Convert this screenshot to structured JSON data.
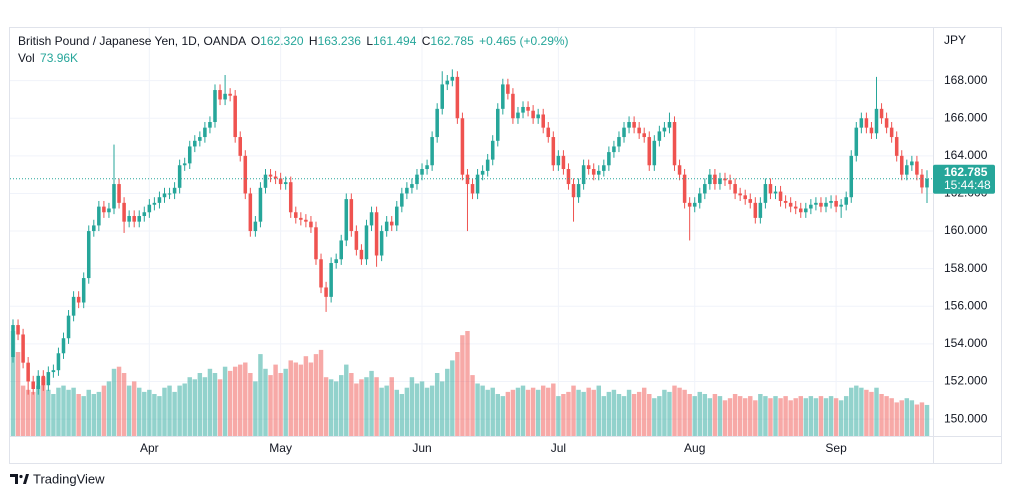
{
  "chart_data": {
    "type": "candlestick",
    "title": "British Pound / Japanese Yen, 1D, OANDA",
    "ohlc_letters": [
      "O",
      "H",
      "L",
      "C"
    ],
    "ohlc_labels": [
      "162.320",
      "163.236",
      "161.494",
      "162.785"
    ],
    "change_label": "+0.465 (+0.29%)",
    "volume_name": "Vol",
    "volume_value_label": "73.96K",
    "currency": "JPY",
    "last_price_label": "162.785",
    "countdown": "15:44:48",
    "brand": "TradingView",
    "up_color": "#26a69a",
    "down_color": "#ef5350",
    "grid": true,
    "ylim": [
      149.1,
      170.8
    ],
    "yticks": [
      {
        "value": 150,
        "label": "150.000"
      },
      {
        "value": 152,
        "label": "152.000"
      },
      {
        "value": 154,
        "label": "154.000"
      },
      {
        "value": 156,
        "label": "156.000"
      },
      {
        "value": 158,
        "label": "158.000"
      },
      {
        "value": 160,
        "label": "160.000"
      },
      {
        "value": 162,
        "label": "162.000"
      },
      {
        "value": 164,
        "label": "164.000"
      },
      {
        "value": 166,
        "label": "166.000"
      },
      {
        "value": 168,
        "label": "168.000"
      }
    ],
    "xticks": [
      {
        "value": 27,
        "label": "Apr"
      },
      {
        "value": 53,
        "label": "May"
      },
      {
        "value": 81,
        "label": "Jun"
      },
      {
        "value": 108,
        "label": "Jul"
      },
      {
        "value": 135,
        "label": "Aug"
      },
      {
        "value": 163,
        "label": "Sep"
      }
    ],
    "open": [
      153.3,
      155.0,
      154.5,
      153.0,
      152.0,
      151.6,
      152.3,
      151.8,
      152.5,
      152.6,
      153.5,
      154.3,
      155.5,
      156.5,
      156.2,
      157.5,
      160.0,
      160.3,
      161.3,
      161.0,
      161.2,
      162.5,
      161.5,
      160.5,
      160.8,
      160.5,
      160.8,
      161.0,
      161.4,
      161.5,
      161.8,
      162.0,
      162.0,
      162.3,
      163.5,
      163.6,
      164.5,
      164.8,
      165.0,
      165.5,
      165.8,
      167.5,
      167.0,
      167.3,
      167.2,
      165.0,
      164.0,
      162.0,
      160.0,
      160.5,
      162.3,
      163.0,
      162.9,
      162.8,
      162.5,
      162.6,
      161.0,
      160.7,
      160.6,
      160.5,
      160.2,
      158.5,
      157.0,
      156.5,
      158.3,
      158.5,
      159.5,
      161.7,
      160.0,
      159.0,
      158.5,
      160.3,
      161.0,
      158.7,
      160.0,
      160.5,
      160.3,
      161.3,
      162.0,
      162.3,
      162.5,
      163.0,
      163.3,
      163.5,
      165.0,
      166.5,
      167.8,
      168.0,
      168.2,
      166.0,
      163.0,
      162.5,
      162.0,
      163.0,
      163.2,
      163.8,
      164.8,
      166.5,
      167.8,
      167.3,
      166.0,
      166.3,
      166.6,
      166.4,
      166.0,
      166.2,
      165.5,
      165.0,
      163.5,
      164.0,
      163.3,
      162.5,
      161.8,
      162.5,
      163.5,
      163.3,
      163.0,
      163.2,
      163.5,
      164.2,
      164.5,
      165.0,
      165.5,
      165.8,
      165.5,
      165.2,
      165.0,
      163.5,
      164.8,
      165.3,
      165.5,
      165.8,
      163.5,
      163.0,
      161.5,
      161.3,
      161.5,
      162.0,
      162.5,
      163.0,
      162.5,
      162.8,
      162.7,
      162.5,
      162.0,
      161.9,
      161.7,
      161.5,
      160.7,
      161.5,
      162.5,
      162.0,
      162.1,
      161.6,
      161.5,
      161.3,
      161.2,
      161.0,
      161.2,
      161.4,
      161.5,
      161.3,
      161.5,
      161.6,
      161.3,
      161.4,
      161.8,
      164.0,
      165.5,
      166.0,
      165.5,
      165.2,
      166.5,
      166.0,
      165.5,
      165.0,
      164.0,
      163.0,
      163.5,
      163.7,
      163.0,
      162.32
    ],
    "high": [
      155.3,
      155.3,
      154.8,
      153.3,
      152.3,
      152.6,
      152.6,
      152.8,
      152.9,
      153.8,
      154.6,
      155.8,
      156.8,
      156.8,
      157.8,
      160.3,
      160.6,
      161.6,
      161.6,
      161.5,
      164.6,
      162.8,
      161.8,
      161.1,
      161.1,
      161.1,
      161.3,
      161.7,
      161.8,
      162.1,
      162.3,
      162.3,
      162.6,
      163.8,
      163.9,
      164.8,
      165.1,
      165.3,
      165.8,
      166.1,
      167.8,
      167.8,
      168.3,
      167.6,
      167.5,
      165.3,
      164.3,
      162.3,
      160.8,
      162.6,
      163.3,
      163.3,
      163.2,
      163.1,
      162.9,
      162.9,
      161.3,
      161.0,
      160.9,
      160.8,
      160.5,
      158.8,
      157.3,
      158.6,
      158.8,
      159.8,
      162.0,
      162.0,
      160.3,
      159.3,
      160.6,
      161.3,
      161.3,
      160.3,
      160.8,
      160.8,
      161.6,
      162.3,
      162.6,
      162.8,
      163.3,
      163.6,
      163.8,
      165.3,
      166.8,
      168.5,
      168.3,
      168.6,
      168.5,
      166.3,
      163.3,
      162.8,
      163.3,
      163.5,
      164.1,
      165.1,
      166.8,
      168.1,
      168.1,
      167.6,
      166.6,
      166.9,
      166.9,
      166.7,
      166.5,
      166.5,
      165.8,
      165.3,
      164.3,
      164.3,
      163.6,
      162.8,
      162.8,
      163.8,
      163.8,
      163.6,
      163.5,
      163.8,
      164.5,
      164.8,
      165.3,
      165.8,
      166.1,
      166.1,
      165.8,
      165.5,
      165.3,
      165.1,
      165.6,
      165.8,
      166.3,
      166.1,
      163.8,
      163.3,
      161.8,
      161.8,
      162.3,
      162.8,
      163.3,
      163.3,
      163.1,
      163.1,
      163.0,
      162.8,
      162.3,
      162.2,
      162.0,
      161.8,
      161.8,
      162.8,
      162.8,
      162.4,
      162.4,
      161.9,
      161.8,
      161.6,
      161.5,
      161.5,
      161.7,
      161.8,
      161.8,
      161.8,
      161.9,
      161.9,
      161.7,
      162.1,
      164.3,
      165.8,
      166.3,
      166.3,
      165.8,
      168.2,
      166.8,
      166.3,
      165.8,
      165.3,
      164.3,
      163.8,
      164.0,
      164.0,
      163.3,
      163.236
    ],
    "low": [
      153.0,
      154.2,
      152.7,
      151.3,
      151.3,
      151.3,
      151.5,
      151.5,
      152.2,
      152.3,
      153.2,
      154.0,
      155.2,
      155.9,
      155.9,
      157.2,
      159.7,
      160.0,
      160.7,
      160.7,
      160.9,
      161.2,
      159.9,
      160.2,
      160.2,
      160.2,
      160.5,
      160.7,
      161.1,
      161.2,
      161.5,
      161.7,
      161.7,
      162.0,
      163.2,
      163.3,
      164.2,
      164.5,
      164.7,
      165.2,
      165.5,
      166.7,
      166.7,
      166.9,
      164.7,
      163.7,
      161.7,
      159.7,
      159.7,
      160.2,
      162.0,
      162.6,
      162.5,
      162.2,
      162.2,
      160.7,
      160.4,
      160.3,
      160.2,
      159.9,
      158.2,
      156.7,
      155.7,
      156.2,
      158.0,
      158.2,
      159.2,
      159.7,
      158.7,
      158.2,
      158.2,
      160.0,
      158.1,
      158.4,
      159.7,
      160.0,
      160.0,
      161.0,
      161.7,
      162.0,
      162.2,
      162.7,
      163.0,
      163.2,
      164.7,
      166.2,
      167.5,
      167.7,
      165.7,
      162.7,
      160.0,
      161.7,
      161.7,
      162.7,
      162.9,
      163.5,
      164.5,
      166.2,
      167.0,
      165.7,
      165.7,
      166.0,
      166.1,
      165.7,
      165.7,
      165.2,
      164.7,
      163.2,
      163.2,
      163.0,
      162.2,
      160.5,
      161.5,
      162.2,
      163.0,
      162.7,
      162.7,
      162.9,
      163.2,
      163.9,
      164.2,
      164.7,
      165.2,
      165.2,
      164.9,
      164.7,
      163.2,
      163.2,
      164.5,
      165.0,
      165.2,
      163.2,
      162.7,
      161.2,
      159.5,
      161.0,
      161.2,
      161.7,
      162.2,
      162.2,
      162.2,
      162.4,
      162.2,
      161.7,
      161.6,
      161.4,
      161.2,
      160.4,
      160.4,
      161.2,
      161.7,
      161.7,
      161.3,
      161.2,
      161.0,
      160.9,
      160.7,
      160.7,
      160.9,
      161.1,
      161.0,
      161.0,
      161.2,
      161.0,
      160.7,
      161.1,
      161.5,
      163.7,
      165.2,
      165.2,
      164.9,
      164.9,
      165.7,
      165.2,
      164.7,
      163.7,
      162.7,
      162.7,
      163.2,
      162.7,
      162.0,
      161.494
    ],
    "close": [
      155.0,
      154.5,
      153.0,
      152.0,
      151.6,
      152.3,
      151.8,
      152.5,
      152.6,
      153.5,
      154.3,
      155.5,
      156.5,
      156.2,
      157.5,
      160.0,
      160.3,
      161.3,
      161.0,
      161.2,
      162.5,
      161.5,
      160.5,
      160.8,
      160.5,
      160.8,
      161.0,
      161.4,
      161.5,
      161.8,
      162.0,
      162.0,
      162.3,
      163.5,
      163.6,
      164.5,
      164.8,
      165.0,
      165.5,
      165.8,
      167.5,
      167.0,
      167.3,
      167.2,
      165.0,
      164.0,
      162.0,
      160.0,
      160.5,
      162.3,
      163.0,
      162.9,
      162.8,
      162.5,
      162.6,
      161.0,
      160.7,
      160.6,
      160.5,
      160.2,
      158.5,
      157.0,
      156.5,
      158.3,
      158.5,
      159.5,
      161.7,
      160.0,
      159.0,
      158.5,
      160.3,
      161.0,
      158.7,
      160.0,
      160.5,
      160.3,
      161.3,
      162.0,
      162.3,
      162.5,
      163.0,
      163.3,
      163.5,
      165.0,
      166.5,
      167.8,
      168.0,
      168.2,
      166.0,
      163.0,
      162.5,
      162.0,
      163.0,
      163.2,
      163.8,
      164.8,
      166.5,
      167.8,
      167.3,
      166.0,
      166.3,
      166.6,
      166.4,
      166.0,
      166.2,
      165.5,
      165.0,
      163.5,
      164.0,
      163.3,
      162.5,
      161.8,
      162.5,
      163.5,
      163.3,
      163.0,
      163.2,
      163.5,
      164.2,
      164.5,
      165.0,
      165.5,
      165.8,
      165.5,
      165.2,
      165.0,
      163.5,
      164.8,
      165.3,
      165.5,
      165.8,
      163.5,
      163.0,
      161.5,
      161.3,
      161.5,
      162.0,
      162.5,
      163.0,
      162.5,
      162.8,
      162.7,
      162.5,
      162.0,
      161.9,
      161.7,
      161.5,
      160.7,
      161.5,
      162.5,
      162.0,
      162.1,
      161.6,
      161.5,
      161.3,
      161.2,
      161.0,
      161.2,
      161.4,
      161.5,
      161.3,
      161.5,
      161.6,
      161.3,
      161.4,
      161.8,
      164.0,
      165.5,
      166.0,
      165.5,
      165.2,
      166.5,
      166.0,
      165.5,
      165.0,
      164.0,
      163.0,
      163.5,
      163.7,
      163.0,
      162.32,
      162.785
    ],
    "volume": [
      250,
      200,
      120,
      110,
      105,
      120,
      140,
      110,
      100,
      115,
      120,
      110,
      115,
      100,
      95,
      110,
      100,
      105,
      120,
      130,
      160,
      165,
      150,
      120,
      130,
      115,
      105,
      110,
      100,
      95,
      115,
      120,
      105,
      120,
      125,
      140,
      135,
      150,
      140,
      160,
      150,
      135,
      165,
      155,
      165,
      170,
      175,
      150,
      130,
      195,
      160,
      145,
      170,
      150,
      160,
      180,
      175,
      170,
      190,
      175,
      195,
      205,
      140,
      135,
      130,
      145,
      170,
      150,
      125,
      135,
      140,
      155,
      140,
      115,
      120,
      140,
      110,
      100,
      115,
      140,
      125,
      130,
      115,
      120,
      150,
      130,
      160,
      180,
      200,
      240,
      250,
      145,
      125,
      120,
      110,
      115,
      100,
      95,
      105,
      110,
      115,
      120,
      110,
      115,
      110,
      120,
      115,
      125,
      95,
      100,
      105,
      120,
      110,
      105,
      115,
      110,
      120,
      95,
      105,
      110,
      100,
      95,
      110,
      100,
      105,
      115,
      100,
      90,
      95,
      110,
      105,
      120,
      115,
      110,
      100,
      95,
      105,
      100,
      90,
      100,
      95,
      85,
      90,
      100,
      95,
      90,
      95,
      85,
      100,
      95,
      90,
      95,
      90,
      95,
      85,
      90,
      95,
      90,
      95,
      90,
      95,
      90,
      95,
      90,
      85,
      95,
      115,
      120,
      115,
      110,
      105,
      115,
      100,
      95,
      90,
      80,
      85,
      90,
      85,
      75,
      80,
      73.96
    ]
  }
}
